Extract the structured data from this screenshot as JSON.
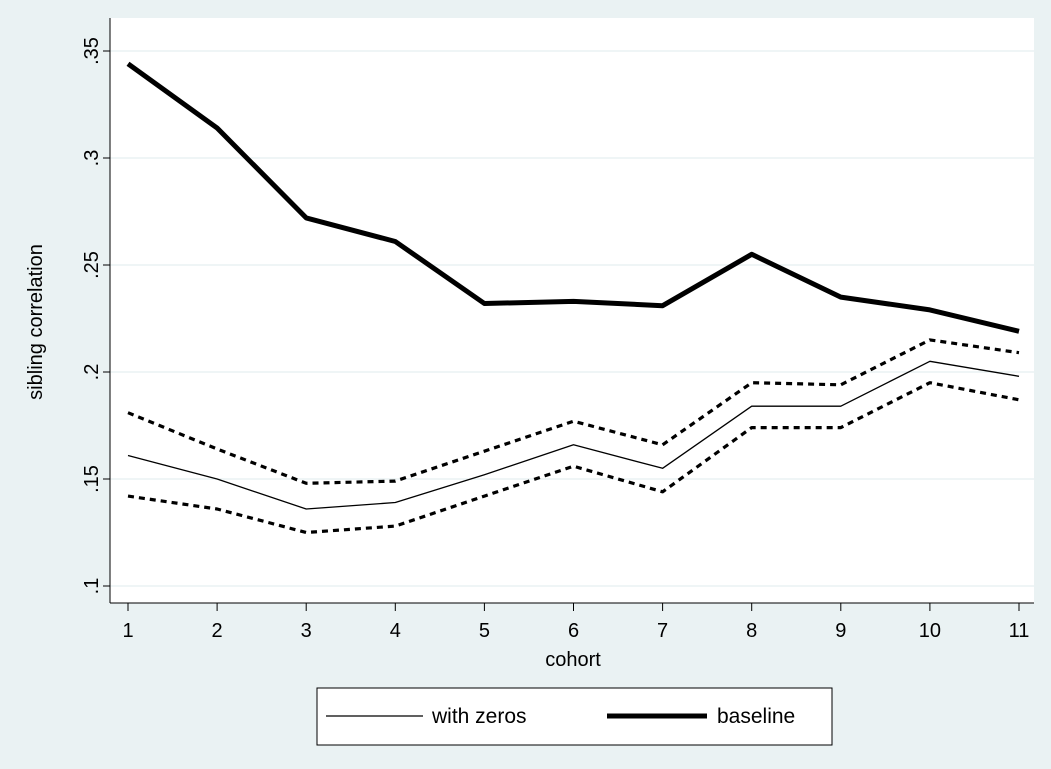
{
  "chart_data": {
    "type": "line",
    "title": "",
    "xlabel": "cohort",
    "ylabel": "sibling correlation",
    "x": [
      1,
      2,
      3,
      4,
      5,
      6,
      7,
      8,
      9,
      10,
      11
    ],
    "xticks": [
      "1",
      "2",
      "3",
      "4",
      "5",
      "6",
      "7",
      "8",
      "9",
      "10",
      "11"
    ],
    "yticks": [
      {
        "value": 0.1,
        "label": ".1"
      },
      {
        "value": 0.15,
        "label": ".15"
      },
      {
        "value": 0.2,
        "label": ".2"
      },
      {
        "value": 0.25,
        "label": ".25"
      },
      {
        "value": 0.3,
        "label": ".3"
      },
      {
        "value": 0.35,
        "label": ".35"
      }
    ],
    "ylim": [
      0.1,
      0.35
    ],
    "xlim": [
      1,
      11
    ],
    "grid": true,
    "legend_position": "bottom",
    "series": [
      {
        "name": "with zeros",
        "style": "thin-solid",
        "color": "#000000",
        "values": [
          0.161,
          0.15,
          0.136,
          0.139,
          0.152,
          0.166,
          0.155,
          0.184,
          0.184,
          0.205,
          0.198
        ]
      },
      {
        "name": "",
        "style": "dashed",
        "color": "#000000",
        "values": [
          0.181,
          0.164,
          0.148,
          0.149,
          0.163,
          0.177,
          0.166,
          0.195,
          0.194,
          0.215,
          0.209
        ]
      },
      {
        "name": "",
        "style": "dashed",
        "color": "#000000",
        "values": [
          0.142,
          0.136,
          0.125,
          0.128,
          0.142,
          0.156,
          0.144,
          0.174,
          0.174,
          0.195,
          0.187
        ]
      },
      {
        "name": "baseline",
        "style": "thick-solid",
        "color": "#000000",
        "values": [
          0.344,
          0.314,
          0.272,
          0.261,
          0.232,
          0.233,
          0.231,
          0.255,
          0.235,
          0.229,
          0.219
        ]
      }
    ],
    "legend": [
      {
        "label": "with zeros",
        "style": "thin-solid"
      },
      {
        "label": "baseline",
        "style": "thick-solid"
      }
    ],
    "colors": {
      "outer_background": "#eaf2f3",
      "plot_background": "#ffffff",
      "grid": "#eaf2f3",
      "line": "#000000"
    }
  }
}
